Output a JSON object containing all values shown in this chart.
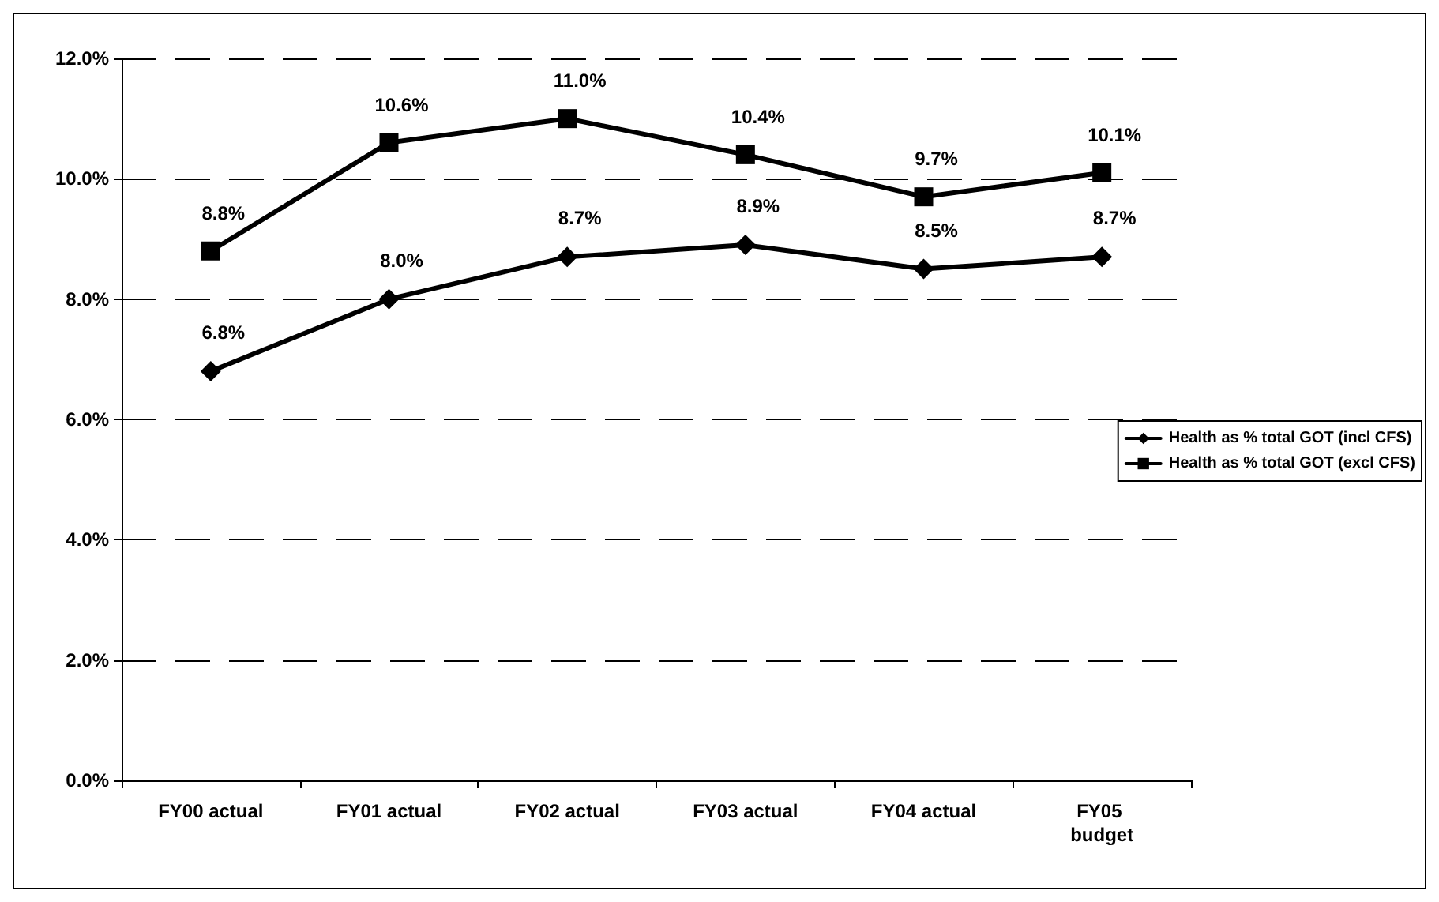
{
  "chart_data": {
    "type": "line",
    "categories": [
      "FY00 actual",
      "FY01 actual",
      "FY02 actual",
      "FY03 actual",
      "FY04 actual",
      "FY05 budget"
    ],
    "series": [
      {
        "name": "Health as % total GOT (incl CFS)",
        "color": "#000000",
        "marker": "diamond",
        "values": [
          6.8,
          8.0,
          8.7,
          8.9,
          8.5,
          8.7
        ],
        "value_labels": [
          "6.8%",
          "8.0%",
          "8.7%",
          "8.9%",
          "8.5%",
          "8.7%"
        ]
      },
      {
        "name": "Health as % total GOT (excl CFS)",
        "color": "#000000",
        "marker": "square",
        "values": [
          8.8,
          10.6,
          11.0,
          10.4,
          9.7,
          10.1
        ],
        "value_labels": [
          "8.8%",
          "10.6%",
          "11.0%",
          "10.4%",
          "9.7%",
          "10.1%"
        ]
      }
    ],
    "ylim": [
      0,
      12
    ],
    "yticks": [
      {
        "value": 0,
        "label": "0.0%"
      },
      {
        "value": 2,
        "label": "2.0%"
      },
      {
        "value": 4,
        "label": "4.0%"
      },
      {
        "value": 6,
        "label": "6.0%"
      },
      {
        "value": 8,
        "label": "8.0%"
      },
      {
        "value": 10,
        "label": "10.0%"
      },
      {
        "value": 12,
        "label": "12.0%"
      }
    ],
    "grid": "y",
    "legend": "right",
    "line_style": "solid"
  }
}
